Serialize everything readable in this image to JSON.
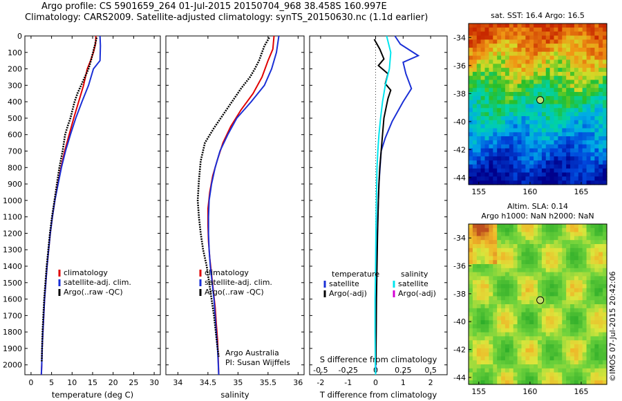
{
  "header": {
    "line1": "Argo profile: CS 5901659_264 01-Jul-2015 20150704_968 38.458S 160.997E",
    "line2": "Climatology: CARS2009. Satellite-adjusted climatology: synTS_20150630.nc (1.1d earlier)"
  },
  "credit": "©IMOS 07-Jul-2015 20:42:06",
  "colors": {
    "clim": "#e00000",
    "sat": "#1a2fd6",
    "argo": "#000000",
    "cyan": "#00e5ee",
    "magenta": "#d400d4"
  },
  "chart_data": [
    {
      "id": "temperature",
      "type": "line",
      "xlabel": "temperature (deg C)",
      "ylabel": "",
      "xlim": [
        -1.5,
        31.5
      ],
      "ylim": [
        2060,
        0
      ],
      "xticks": [
        0,
        5,
        10,
        15,
        20,
        25,
        30
      ],
      "yticks": [
        0,
        100,
        200,
        300,
        400,
        500,
        600,
        700,
        800,
        900,
        1000,
        1100,
        1200,
        1300,
        1400,
        1500,
        1600,
        1700,
        1800,
        1900,
        2000
      ],
      "legend": [
        "climatology",
        "satellite-adj. clim.",
        "Argo(..raw -QC)"
      ],
      "series": [
        {
          "name": "climatology",
          "color": "clim",
          "style": "solid",
          "points": [
            [
              15.8,
              0
            ],
            [
              15.7,
              50
            ],
            [
              15.2,
              100
            ],
            [
              14.5,
              150
            ],
            [
              13.7,
              200
            ],
            [
              12.8,
              300
            ],
            [
              11.6,
              400
            ],
            [
              10.4,
              500
            ],
            [
              9.3,
              600
            ],
            [
              8.2,
              700
            ],
            [
              7.3,
              800
            ],
            [
              6.5,
              900
            ],
            [
              5.8,
              1000
            ],
            [
              5.2,
              1100
            ],
            [
              4.7,
              1200
            ],
            [
              4.3,
              1300
            ],
            [
              3.9,
              1400
            ],
            [
              3.6,
              1500
            ],
            [
              3.3,
              1600
            ],
            [
              3.1,
              1700
            ],
            [
              2.9,
              1800
            ],
            [
              2.7,
              1900
            ],
            [
              2.6,
              2000
            ],
            [
              2.5,
              2060
            ]
          ]
        },
        {
          "name": "satellite-adj. clim.",
          "color": "sat",
          "style": "solid",
          "points": [
            [
              16.8,
              0
            ],
            [
              16.9,
              60
            ],
            [
              16.8,
              150
            ],
            [
              15.2,
              200
            ],
            [
              14.0,
              300
            ],
            [
              12.4,
              400
            ],
            [
              10.9,
              500
            ],
            [
              9.6,
              600
            ],
            [
              8.4,
              700
            ],
            [
              7.4,
              800
            ],
            [
              6.6,
              900
            ],
            [
              5.8,
              1000
            ],
            [
              5.2,
              1100
            ],
            [
              4.7,
              1200
            ],
            [
              4.3,
              1300
            ],
            [
              3.9,
              1400
            ],
            [
              3.6,
              1500
            ],
            [
              3.3,
              1600
            ],
            [
              3.1,
              1700
            ],
            [
              2.9,
              1800
            ],
            [
              2.7,
              1900
            ],
            [
              2.6,
              2000
            ],
            [
              2.5,
              2060
            ]
          ]
        },
        {
          "name": "Argo(..raw -QC)",
          "color": "argo",
          "style": "dots",
          "points": [
            [
              16.0,
              10
            ],
            [
              15.6,
              50
            ],
            [
              15.1,
              100
            ],
            [
              14.6,
              150
            ],
            [
              14.0,
              200
            ],
            [
              13.1,
              250
            ],
            [
              12.2,
              300
            ],
            [
              11.3,
              350
            ],
            [
              10.6,
              400
            ],
            [
              10.1,
              450
            ],
            [
              9.6,
              500
            ],
            [
              8.9,
              550
            ],
            [
              8.3,
              600
            ],
            [
              7.7,
              700
            ],
            [
              6.9,
              800
            ],
            [
              6.3,
              900
            ],
            [
              5.7,
              1000
            ],
            [
              5.1,
              1100
            ],
            [
              4.6,
              1200
            ],
            [
              4.2,
              1300
            ],
            [
              3.8,
              1400
            ],
            [
              3.5,
              1500
            ],
            [
              3.2,
              1600
            ],
            [
              3.0,
              1700
            ],
            [
              2.8,
              1800
            ],
            [
              2.7,
              1900
            ],
            [
              2.6,
              1980
            ]
          ]
        }
      ]
    },
    {
      "id": "salinity",
      "type": "line",
      "xlabel": "salinity",
      "ylabel": "",
      "xlim": [
        33.8,
        36.1
      ],
      "ylim": [
        2060,
        0
      ],
      "xticks": [
        34,
        34.5,
        35,
        35.5,
        36
      ],
      "legend": [
        "climatology",
        "satellite-adj. clim.",
        "Argo(..raw -QC)"
      ],
      "annotation": [
        "Argo Australia",
        "PI: Susan Wijffels"
      ],
      "series": [
        {
          "name": "climatology",
          "color": "clim",
          "style": "solid",
          "points": [
            [
              35.6,
              0
            ],
            [
              35.58,
              80
            ],
            [
              35.5,
              150
            ],
            [
              35.4,
              250
            ],
            [
              35.25,
              350
            ],
            [
              35.05,
              450
            ],
            [
              34.88,
              550
            ],
            [
              34.75,
              650
            ],
            [
              34.66,
              750
            ],
            [
              34.58,
              850
            ],
            [
              34.53,
              950
            ],
            [
              34.5,
              1050
            ],
            [
              34.5,
              1150
            ],
            [
              34.51,
              1250
            ],
            [
              34.53,
              1350
            ],
            [
              34.56,
              1450
            ],
            [
              34.59,
              1550
            ],
            [
              34.62,
              1650
            ],
            [
              34.64,
              1750
            ],
            [
              34.66,
              1850
            ],
            [
              34.67,
              1950
            ],
            [
              34.68,
              2060
            ]
          ]
        },
        {
          "name": "satellite-adj. clim.",
          "color": "sat",
          "style": "solid",
          "points": [
            [
              35.68,
              0
            ],
            [
              35.64,
              100
            ],
            [
              35.56,
              200
            ],
            [
              35.44,
              300
            ],
            [
              35.22,
              400
            ],
            [
              34.98,
              500
            ],
            [
              34.83,
              600
            ],
            [
              34.7,
              700
            ],
            [
              34.62,
              800
            ],
            [
              34.56,
              900
            ],
            [
              34.52,
              1000
            ],
            [
              34.51,
              1100
            ],
            [
              34.51,
              1200
            ],
            [
              34.52,
              1300
            ],
            [
              34.54,
              1400
            ],
            [
              34.57,
              1500
            ],
            [
              34.6,
              1600
            ],
            [
              34.62,
              1700
            ],
            [
              34.64,
              1800
            ],
            [
              34.66,
              1900
            ],
            [
              34.68,
              2060
            ]
          ]
        },
        {
          "name": "Argo(..raw -QC)",
          "color": "argo",
          "style": "dots",
          "points": [
            [
              35.52,
              10
            ],
            [
              35.44,
              60
            ],
            [
              35.4,
              100
            ],
            [
              35.35,
              150
            ],
            [
              35.28,
              200
            ],
            [
              35.2,
              250
            ],
            [
              35.05,
              320
            ],
            [
              34.9,
              400
            ],
            [
              34.75,
              480
            ],
            [
              34.6,
              560
            ],
            [
              34.45,
              650
            ],
            [
              34.38,
              760
            ],
            [
              34.35,
              880
            ],
            [
              34.33,
              1000
            ],
            [
              34.35,
              1100
            ],
            [
              34.38,
              1200
            ],
            [
              34.42,
              1300
            ],
            [
              34.48,
              1400
            ],
            [
              34.52,
              1500
            ],
            [
              34.56,
              1600
            ],
            [
              34.6,
              1700
            ],
            [
              34.63,
              1800
            ],
            [
              34.66,
              1900
            ],
            [
              34.68,
              1950
            ]
          ]
        }
      ]
    },
    {
      "id": "difference",
      "type": "line",
      "xlabel": "T difference from climatology",
      "xlabel2": "S difference from climatology",
      "xlim": [
        -2.4,
        2.6
      ],
      "ylim": [
        2060,
        0
      ],
      "xticks": [
        -2,
        -1,
        0,
        1,
        2
      ],
      "xticks2": [
        -0.5,
        -0.25,
        0,
        0.25,
        0.5
      ],
      "legend_groups": [
        {
          "title": "temperature",
          "items": [
            "satellite",
            "Argo(-adj)"
          ]
        },
        {
          "title": "salinity",
          "items": [
            "satellite",
            "Argo(-adj)"
          ]
        }
      ],
      "series": [
        {
          "name": "temperature satellite",
          "color": "sat",
          "style": "solid",
          "points": [
            [
              0.7,
              0
            ],
            [
              0.9,
              50
            ],
            [
              1.55,
              120
            ],
            [
              1.0,
              160
            ],
            [
              1.1,
              230
            ],
            [
              1.3,
              320
            ],
            [
              1.0,
              400
            ],
            [
              0.6,
              520
            ],
            [
              0.35,
              620
            ],
            [
              0.2,
              700
            ],
            [
              0.12,
              900
            ],
            [
              0.08,
              1100
            ],
            [
              0.05,
              1300
            ],
            [
              0.03,
              1500
            ],
            [
              0.02,
              1700
            ],
            [
              0.01,
              1900
            ],
            [
              0.0,
              2060
            ]
          ]
        },
        {
          "name": "temperature Argo(-adj)",
          "color": "argo",
          "style": "solid",
          "points": [
            [
              -0.05,
              20
            ],
            [
              0.15,
              80
            ],
            [
              0.3,
              140
            ],
            [
              0.1,
              180
            ],
            [
              0.45,
              230
            ],
            [
              0.35,
              290
            ],
            [
              0.55,
              330
            ],
            [
              0.45,
              380
            ],
            [
              0.4,
              420
            ],
            [
              0.3,
              500
            ],
            [
              0.25,
              600
            ],
            [
              0.2,
              700
            ],
            [
              0.15,
              800
            ],
            [
              0.12,
              900
            ],
            [
              0.1,
              1000
            ],
            [
              0.07,
              1200
            ],
            [
              0.05,
              1400
            ],
            [
              0.03,
              1600
            ],
            [
              0.02,
              1800
            ],
            [
              0.01,
              2000
            ]
          ]
        },
        {
          "name": "salinity satellite",
          "color": "cyan",
          "style": "solid",
          "points": [
            [
              0.4,
              0
            ],
            [
              0.55,
              100
            ],
            [
              0.5,
              200
            ],
            [
              0.35,
              300
            ],
            [
              0.25,
              400
            ],
            [
              0.18,
              500
            ],
            [
              0.12,
              600
            ],
            [
              0.08,
              700
            ],
            [
              0.05,
              800
            ],
            [
              0.03,
              1000
            ],
            [
              0.01,
              1200
            ],
            [
              0.0,
              1400
            ],
            [
              -0.02,
              1600
            ],
            [
              -0.02,
              1800
            ],
            [
              -0.01,
              2000
            ],
            [
              0.0,
              2060
            ]
          ]
        },
        {
          "name": "salinity Argo(-adj)",
          "color": "magenta",
          "style": "none",
          "points": []
        }
      ]
    }
  ],
  "maps": [
    {
      "id": "sst-map",
      "title": "sat. SST: 16.4 Argo: 16.5",
      "type": "heatmap",
      "xticks": [
        155,
        160,
        165
      ],
      "yticks": [
        -34,
        -36,
        -38,
        -40,
        -42,
        -44
      ],
      "xlim": [
        154,
        167.5
      ],
      "ylim": [
        -44.5,
        -33
      ],
      "marker": [
        160.997,
        -38.458
      ]
    },
    {
      "id": "sla-map",
      "title": "Altim. SLA: 0.14",
      "title2": "Argo h1000: NaN h2000: NaN",
      "type": "heatmap",
      "xticks": [
        155,
        160,
        165
      ],
      "yticks": [
        -34,
        -36,
        -38,
        -40,
        -42,
        -44
      ],
      "xlim": [
        154,
        167.5
      ],
      "ylim": [
        -44.5,
        -33
      ],
      "marker": [
        160.997,
        -38.458
      ]
    }
  ]
}
